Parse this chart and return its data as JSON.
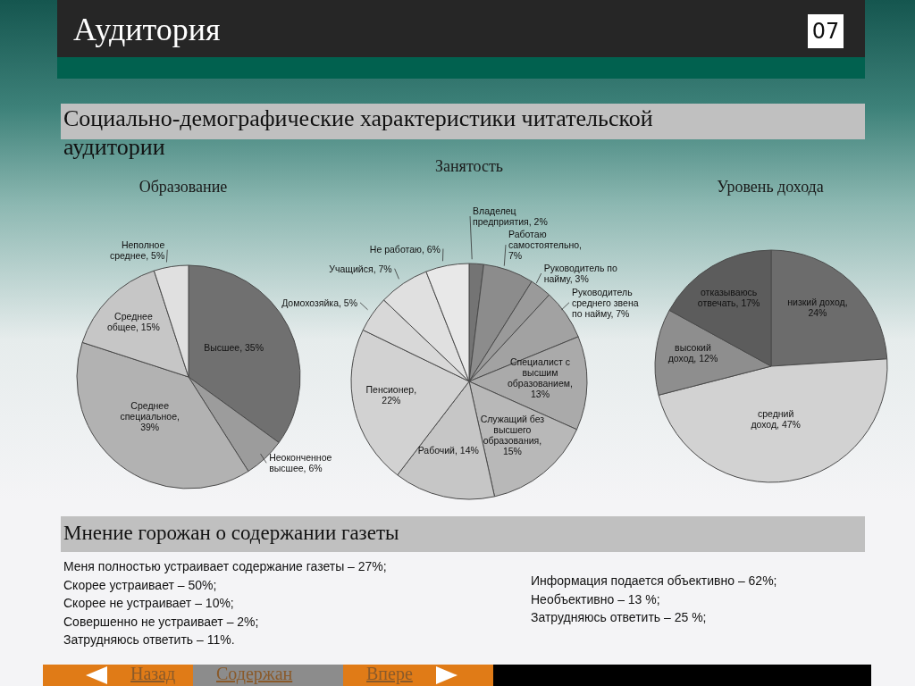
{
  "chart_data": [
    {
      "type": "other",
      "title": "Аудитория",
      "subtitle": "Социально-демографические характеристики читательской аудитории",
      "annotations": [
        "07"
      ]
    },
    {
      "type": "pie",
      "title": "Образование",
      "categories": [
        "Высшее, 35%",
        "Неоконченное высшее, 6%",
        "Среднее специальное, 39%",
        "Среднее общее, 15%",
        "Неполное среднее, 5%"
      ],
      "values": [
        35,
        6,
        39,
        15,
        5
      ],
      "colors": [
        "#707070",
        "#9c9c9c",
        "#b2b2b2",
        "#c6c6c6",
        "#e0e0e0"
      ]
    },
    {
      "type": "pie",
      "title": "Занятость",
      "categories": [
        "Владелец предприятия, 2%",
        "Работаю самостоятельно, 7%",
        "Руководитель по найму, 3%",
        "Руководитель среднего звена по найму, 7%",
        "Специалист с высшим образованием, 13%",
        "Служащий без высшего образования, 15%",
        "Рабочий, 14%",
        "Пенсионер, 22%",
        "Домохозяйка, 5%",
        "Учащийся, 7%",
        "Не работаю, 6%"
      ],
      "values": [
        2,
        7,
        3,
        7,
        13,
        15,
        14,
        22,
        5,
        7,
        6
      ],
      "colors": [
        "#747474",
        "#8c8c8c",
        "#9a9a9a",
        "#a2a2a2",
        "#aaaaaa",
        "#b8b8b8",
        "#c6c6c6",
        "#d2d2d2",
        "#d8d8d8",
        "#e0e0e0",
        "#e8e8e8"
      ]
    },
    {
      "type": "pie",
      "title": "Уровень дохода",
      "categories": [
        "низкий доход, 24%",
        "средний доход, 47%",
        "высокий доход, 12%",
        "отказываюсь отвечать, 17%"
      ],
      "values": [
        24,
        47,
        12,
        17
      ],
      "colors": [
        "#6c6c6c",
        "#d2d2d2",
        "#8e8e8e",
        "#5c5c5c"
      ]
    },
    {
      "type": "other",
      "title": "Мнение горожан о содержании газеты",
      "annotations": [
        "Меня полностью устраивает содержание газеты – 27%;",
        "Скорее устраивает – 50%;",
        "Скорее не устраивает – 10%;",
        "Совершенно не устраивает – 2%;",
        "Затрудняюсь ответить – 11%."
      ]
    },
    {
      "type": "other",
      "annotations": [
        "Информация подается объективно – 62%;",
        "Необъективно – 13 %;",
        "Затрудняюсь ответить – 25 %;"
      ]
    },
    {
      "type": "other",
      "annotations": [
        "Назад",
        "Содержан",
        "Впере"
      ]
    }
  ]
}
